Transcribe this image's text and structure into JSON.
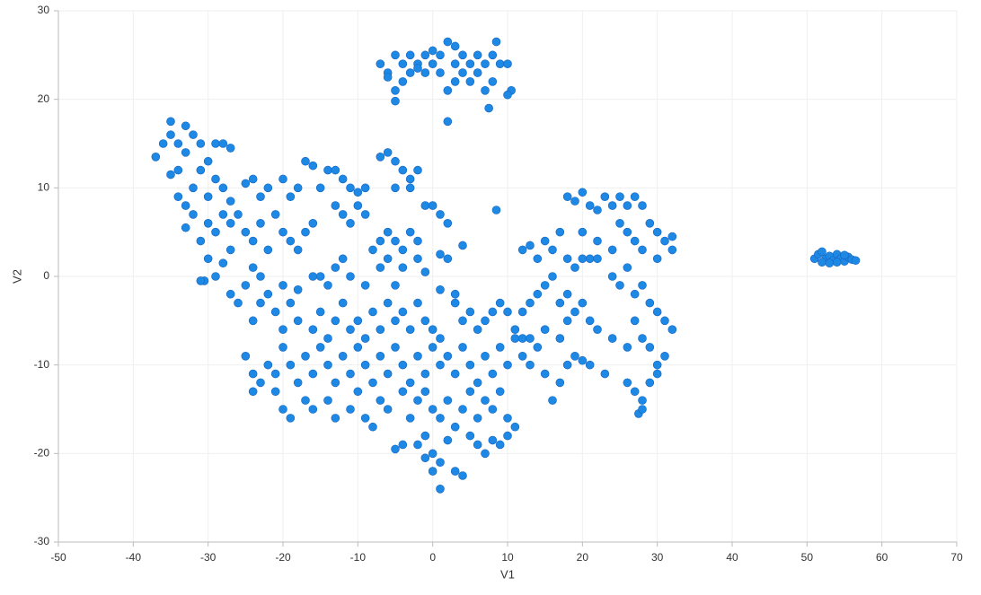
{
  "chart_data": {
    "type": "scatter",
    "x_label": "V1",
    "y_label": "V2",
    "color": "#1e88e5",
    "grid": true,
    "xlim": [
      -50,
      70
    ],
    "xticks": [
      -50,
      -40,
      -30,
      -20,
      -10,
      0,
      10,
      20,
      30,
      40,
      50,
      60,
      70
    ],
    "ylim": [
      -30,
      30
    ],
    "yticks": [
      -30,
      -20,
      -10,
      0,
      10,
      20,
      30
    ],
    "x": [
      -7,
      -6,
      -5,
      -4,
      -3,
      -2,
      -1,
      0,
      1,
      2,
      3,
      4,
      5,
      6,
      7,
      8,
      8.5,
      9,
      10,
      10.5,
      10,
      8,
      7,
      7.5,
      5,
      4,
      3,
      2,
      2,
      1,
      -1,
      -3,
      -4,
      -5,
      -5,
      -6,
      6,
      3,
      0,
      -2,
      -37,
      -36,
      -35,
      -35,
      -34,
      -34,
      -33,
      -33,
      -32,
      -31,
      -30,
      -29,
      -28,
      -27,
      -35,
      -34,
      -33,
      -32,
      -31,
      -30,
      -29,
      -28,
      -27,
      -33,
      -32,
      -31,
      -30,
      -29,
      -28,
      -27,
      -30,
      -29,
      -28,
      -30.5,
      -27,
      -31,
      -25,
      -24,
      -23,
      -22,
      -20,
      -19,
      -18,
      -17,
      -16,
      -15,
      -14,
      -13,
      -12,
      -11,
      -10,
      -9,
      -7,
      -6,
      -5,
      -4,
      -3,
      -2,
      -3,
      -5,
      -26,
      -25,
      -24,
      -23,
      -22,
      -21,
      -20,
      -19,
      -18,
      -17,
      -16,
      -13,
      -12,
      -11,
      -10,
      -9,
      -8,
      -7,
      -6,
      -5,
      -4,
      -3,
      -2,
      -1,
      0,
      1,
      2,
      4,
      1,
      -2,
      -27,
      -25,
      -24,
      -23,
      -22,
      -20,
      -18,
      -16,
      -15,
      -14,
      -13,
      -12,
      -11,
      -9,
      -7,
      -6,
      -5,
      -4,
      -1,
      1,
      2,
      3,
      8.5,
      -26,
      -24,
      -23,
      -21,
      -20,
      -19,
      -18,
      -16,
      -15,
      -14,
      -13,
      -12,
      -11,
      -10,
      -9,
      -8,
      -7,
      -6,
      -5,
      -4,
      -3,
      -2,
      -1,
      0,
      1,
      3,
      4,
      5,
      6,
      7,
      8,
      9,
      10,
      11,
      12,
      -25,
      -24,
      -23,
      -22,
      -21,
      -20,
      -19,
      -18,
      -17,
      -16,
      -15,
      -14,
      -13,
      -12,
      -11,
      -10,
      -9,
      -8,
      -7,
      -6,
      -5,
      -4,
      -3,
      -2,
      -1,
      0,
      1,
      2,
      3,
      4,
      5,
      6,
      7,
      8,
      9,
      10,
      11,
      -24,
      -21,
      -20,
      -19,
      -17,
      -16,
      -14,
      -13,
      -11,
      -10,
      -9,
      -8,
      -7,
      -6,
      -4,
      -3,
      -2,
      -1,
      0,
      1,
      2,
      3,
      4,
      5,
      6,
      7,
      8,
      9,
      10,
      11,
      -5,
      -4,
      -2,
      -1,
      0,
      0,
      1,
      1,
      2,
      3,
      4,
      5,
      6,
      7,
      8,
      9,
      10,
      -1,
      18,
      19,
      20,
      21,
      22,
      23,
      24,
      25,
      26,
      27,
      28,
      29,
      30,
      31,
      32,
      20,
      22,
      24,
      25,
      26,
      27,
      28,
      30,
      32,
      12,
      13,
      14,
      15,
      16,
      17,
      18,
      19,
      20,
      21,
      22,
      24,
      25,
      26,
      27,
      28,
      29,
      30,
      31,
      32,
      16,
      15,
      14,
      13,
      12,
      17,
      18,
      19,
      20,
      21,
      22,
      24,
      26,
      27,
      28,
      29,
      30,
      31,
      12,
      13,
      14,
      15,
      16,
      17,
      18,
      19,
      20,
      21,
      23,
      26,
      27,
      28,
      29,
      30,
      27.5,
      28,
      13,
      15,
      17,
      18,
      51,
      51.5,
      52,
      52.5,
      53,
      53.5,
      54,
      54.5,
      55,
      55.5,
      56,
      56.5,
      52,
      53,
      54,
      55
    ],
    "values": [
      24,
      23,
      25,
      24,
      25,
      24,
      25,
      25.5,
      25,
      26.5,
      26,
      25,
      24,
      23,
      24,
      25,
      26.5,
      24,
      24,
      21,
      20.5,
      22,
      21,
      19,
      22,
      23,
      22,
      21,
      17.5,
      23,
      23,
      23,
      22,
      21,
      19.8,
      22.5,
      25,
      24,
      24,
      23.5,
      13.5,
      15,
      17.5,
      16,
      15,
      12,
      17,
      14,
      16,
      15,
      13,
      15,
      15,
      14.5,
      11.5,
      9,
      8,
      10,
      12,
      9,
      11,
      10,
      8.5,
      5.5,
      7,
      4,
      6,
      5,
      7,
      6,
      2,
      0,
      1.5,
      -0.5,
      3,
      -0.5,
      10.5,
      11,
      9,
      10,
      11,
      9,
      10,
      13,
      12.5,
      10,
      12,
      12,
      11,
      10,
      9.5,
      10,
      13.5,
      14,
      13,
      12,
      11,
      12,
      10,
      10,
      7,
      5,
      4,
      6,
      3,
      7,
      5,
      4,
      3,
      5,
      6,
      8,
      7,
      6,
      8,
      7,
      3,
      4,
      5,
      4,
      3,
      5,
      4,
      8,
      8,
      7,
      6,
      3.5,
      2.5,
      2,
      -2,
      -1,
      1,
      0,
      -2,
      -1,
      -1.5,
      0,
      0,
      -1,
      1,
      2,
      0,
      -1,
      1,
      2,
      -1,
      1,
      0.5,
      -1.5,
      2,
      -2,
      7.5,
      -3,
      -5,
      -3,
      -4,
      -6,
      -3,
      -5,
      -6,
      -4,
      -7,
      -5,
      -3,
      -6,
      -5,
      -7,
      -4,
      -6,
      -3,
      -5,
      -4,
      -6,
      -3,
      -5,
      -6,
      -7,
      -3,
      -5,
      -4,
      -6,
      -5,
      -4,
      -3,
      -4,
      -6,
      -7,
      -9,
      -11,
      -12,
      -10,
      -11,
      -8,
      -10,
      -12,
      -9,
      -11,
      -8,
      -10,
      -12,
      -9,
      -11,
      -8,
      -10,
      -12,
      -9,
      -11,
      -8,
      -10,
      -12,
      -9,
      -11,
      -8,
      -10,
      -9,
      -11,
      -8,
      -10,
      -12,
      -9,
      -11,
      -8,
      -10,
      -7,
      -13,
      -13,
      -15,
      -16,
      -14,
      -15,
      -14,
      -16,
      -15,
      -13,
      -16,
      -17,
      -14,
      -15,
      -13,
      -16,
      -14,
      -13,
      -15,
      -16,
      -14,
      -17,
      -15,
      -13,
      -16,
      -14,
      -15,
      -13,
      -16,
      -17,
      -19.5,
      -19,
      -19,
      -18,
      -20,
      -22,
      -24,
      -21,
      -18.5,
      -22,
      -22.5,
      -18,
      -19,
      -20,
      -18.5,
      -19,
      -18,
      -20.5,
      9,
      8.5,
      9.5,
      8,
      7.5,
      9,
      8,
      9,
      8,
      9,
      8,
      6,
      5,
      4,
      4.5,
      5,
      4,
      3,
      6,
      5,
      4,
      3,
      2,
      3,
      3,
      3.5,
      2,
      4,
      3,
      5,
      2,
      1,
      2,
      2,
      2,
      0,
      -1,
      1,
      -2,
      -1,
      -3,
      -4,
      -5,
      -6,
      0,
      -1,
      -2,
      -3,
      -4,
      -3,
      -2,
      -4,
      -3,
      -5,
      -6,
      -7,
      -8,
      -5,
      -7,
      -8,
      -10,
      -9,
      -9,
      -10,
      -8,
      -11,
      -14,
      -12,
      -10,
      -9,
      -9.5,
      -10,
      -11,
      -12,
      -13,
      -14,
      -12,
      -11,
      -15.5,
      -15,
      -7,
      -6,
      -7,
      -5,
      2,
      2.5,
      2.8,
      2,
      2.3,
      1.8,
      2.5,
      2,
      1.7,
      2.2,
      1.9,
      1.8,
      1.6,
      1.5,
      1.6,
      2.4
    ]
  }
}
